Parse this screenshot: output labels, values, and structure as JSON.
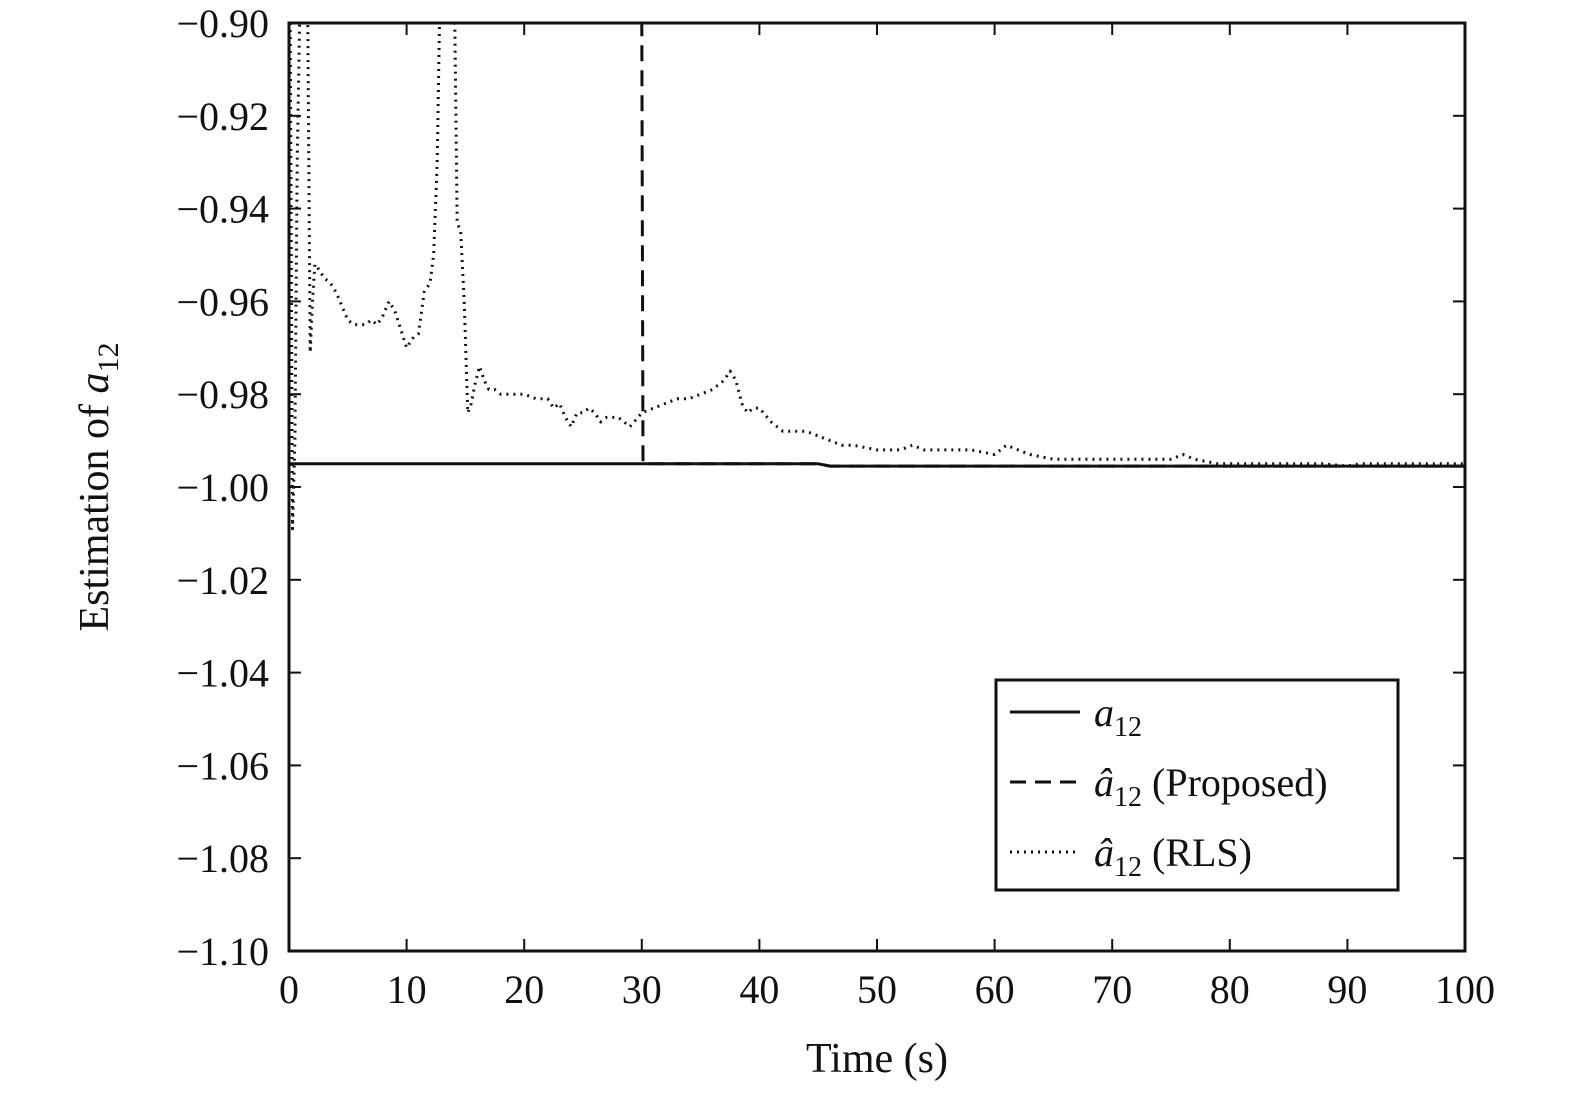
{
  "chart_data": {
    "type": "line",
    "xlabel": "Time (s)",
    "ylabel_text": "Estimation of ",
    "ylabel_var": "a",
    "ylabel_sub": "12",
    "xlim": [
      0,
      100
    ],
    "ylim": [
      -1.1,
      -0.9
    ],
    "x_ticks": [
      0,
      10,
      20,
      30,
      40,
      50,
      60,
      70,
      80,
      90,
      100
    ],
    "x_tick_labels": [
      "0",
      "10",
      "20",
      "30",
      "40",
      "50",
      "60",
      "70",
      "80",
      "90",
      "100"
    ],
    "y_ticks": [
      -0.9,
      -0.92,
      -0.94,
      -0.96,
      -0.98,
      -1.0,
      -1.02,
      -1.04,
      -1.06,
      -1.08,
      -1.1
    ],
    "y_tick_labels": [
      "−0.90",
      "−0.92",
      "−0.94",
      "−0.96",
      "−0.98",
      "−1.00",
      "−1.02",
      "−1.04",
      "−1.06",
      "−1.08",
      "−1.10"
    ],
    "grid": false,
    "legend_position": "bottom-right",
    "series": [
      {
        "name": "a12",
        "legend_var": "a",
        "legend_hat": false,
        "legend_sub": "12",
        "legend_suffix": "",
        "style": "solid",
        "x": [
          0,
          45,
          46,
          100
        ],
        "y": [
          -0.995,
          -0.995,
          -0.9955,
          -0.9955
        ]
      },
      {
        "name": "â12 (Proposed)",
        "legend_var": "a",
        "legend_hat": true,
        "legend_sub": "12",
        "legend_suffix": " (Proposed)",
        "style": "dashed",
        "x": [
          0,
          29.9,
          30,
          30.1,
          45,
          46,
          100
        ],
        "y": [
          -0.9,
          -0.9,
          -0.9,
          -0.995,
          -0.995,
          -0.9955,
          -0.9955
        ]
      },
      {
        "name": "â12 (RLS)",
        "legend_var": "a",
        "legend_hat": true,
        "legend_sub": "12",
        "legend_suffix": " (RLS)",
        "style": "dotted",
        "x": [
          0.1,
          0.3,
          0.5,
          0.7,
          0.9,
          1.2,
          1.6,
          1.8,
          2.0,
          2.2,
          2.5,
          3.0,
          3.5,
          4.0,
          4.5,
          5.0,
          5.5,
          6.0,
          6.5,
          7.0,
          7.5,
          8.0,
          8.5,
          9.0,
          9.5,
          10.0,
          10.5,
          11.0,
          11.5,
          12.0,
          12.3,
          12.6,
          12.8,
          13.2,
          13.6,
          13.9,
          14.1,
          14.3,
          14.6,
          14.9,
          15.2,
          15.5,
          15.8,
          16.2,
          16.6,
          17.0,
          17.5,
          18.0,
          19.0,
          20.0,
          21.0,
          22.0,
          22.5,
          23.0,
          23.5,
          24.0,
          24.5,
          25.0,
          25.5,
          26.0,
          26.5,
          27.0,
          28.0,
          29.0,
          30.0,
          31.0,
          32.0,
          33.0,
          34.0,
          35.0,
          36.0,
          37.0,
          37.5,
          38.0,
          38.5,
          39.0,
          39.5,
          40.0,
          41.0,
          42.0,
          43.0,
          44.0,
          45.0,
          46.0,
          47.0,
          48.0,
          50.0,
          52.0,
          53.0,
          54.0,
          56.0,
          58.0,
          60.0,
          61.0,
          62.0,
          63.0,
          65.0,
          70.0,
          75.0,
          76.0,
          77.0,
          79.0,
          82.0,
          85.0,
          88.0,
          90.0,
          91.0,
          95.0,
          100.0
        ],
        "y": [
          -0.9,
          -1.009,
          -0.99,
          -0.93,
          -0.9,
          -0.9,
          -0.9,
          -0.971,
          -0.96,
          -0.952,
          -0.953,
          -0.955,
          -0.956,
          -0.958,
          -0.961,
          -0.964,
          -0.965,
          -0.965,
          -0.965,
          -0.964,
          -0.965,
          -0.963,
          -0.96,
          -0.962,
          -0.966,
          -0.97,
          -0.968,
          -0.967,
          -0.958,
          -0.956,
          -0.95,
          -0.93,
          -0.9,
          -0.9,
          -0.9,
          -0.9,
          -0.9,
          -0.943,
          -0.945,
          -0.96,
          -0.984,
          -0.982,
          -0.978,
          -0.974,
          -0.977,
          -0.979,
          -0.979,
          -0.98,
          -0.98,
          -0.98,
          -0.981,
          -0.981,
          -0.983,
          -0.982,
          -0.985,
          -0.987,
          -0.984,
          -0.984,
          -0.983,
          -0.984,
          -0.986,
          -0.985,
          -0.985,
          -0.987,
          -0.984,
          -0.983,
          -0.982,
          -0.981,
          -0.981,
          -0.98,
          -0.979,
          -0.977,
          -0.975,
          -0.977,
          -0.982,
          -0.984,
          -0.983,
          -0.983,
          -0.986,
          -0.988,
          -0.988,
          -0.988,
          -0.989,
          -0.99,
          -0.991,
          -0.991,
          -0.992,
          -0.992,
          -0.991,
          -0.992,
          -0.992,
          -0.992,
          -0.993,
          -0.991,
          -0.992,
          -0.993,
          -0.994,
          -0.994,
          -0.994,
          -0.993,
          -0.994,
          -0.995,
          -0.995,
          -0.995,
          -0.995,
          -0.9955,
          -0.995,
          -0.995,
          -0.995
        ]
      }
    ]
  }
}
